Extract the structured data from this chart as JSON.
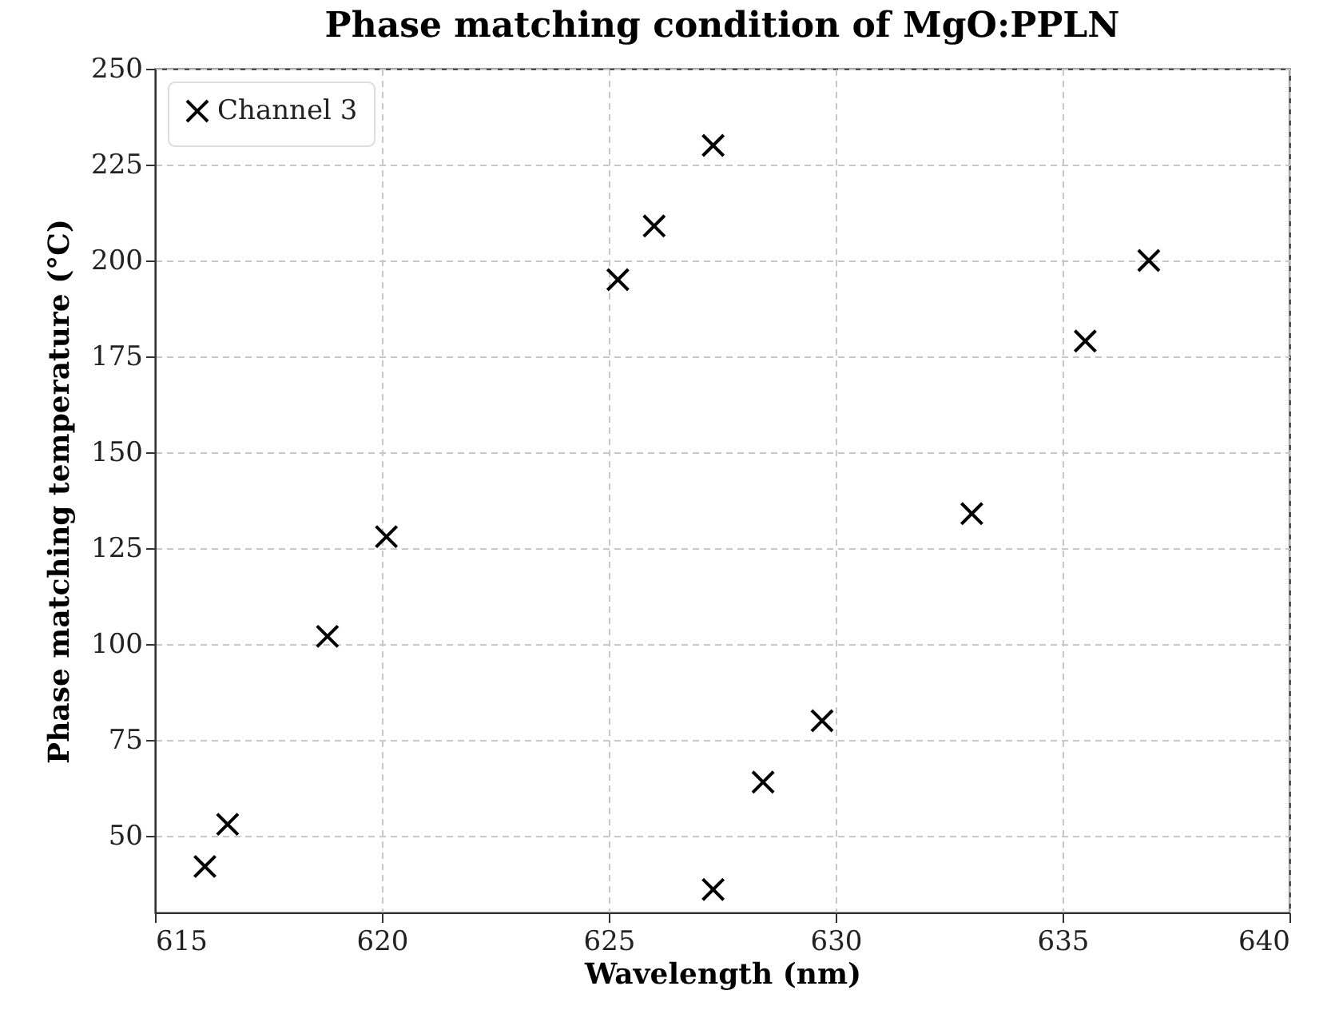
{
  "chart_data": {
    "type": "scatter",
    "title": "Phase matching condition of MgO:PPLN",
    "xlabel": "Wavelength (nm)",
    "ylabel": "Phase matching temperature (°C)",
    "x": [
      616.1,
      616.6,
      618.8,
      620.1,
      625.2,
      626.0,
      627.3,
      627.3,
      628.4,
      629.7,
      633.0,
      635.5,
      636.9
    ],
    "series": [
      {
        "name": "Channel 3",
        "color": "#000000",
        "values": [
          42,
          53,
          102,
          128,
          195,
          209,
          230,
          36,
          64,
          80,
          134,
          179,
          200
        ]
      }
    ],
    "xlim": [
      615,
      640
    ],
    "xticks": [
      615,
      620,
      625,
      630,
      635,
      640
    ],
    "ylim": [
      30,
      250
    ],
    "yticks": [
      50,
      75,
      100,
      125,
      150,
      175,
      200,
      225,
      250
    ],
    "grid": true,
    "legend": "top left",
    "marker": "cross"
  }
}
